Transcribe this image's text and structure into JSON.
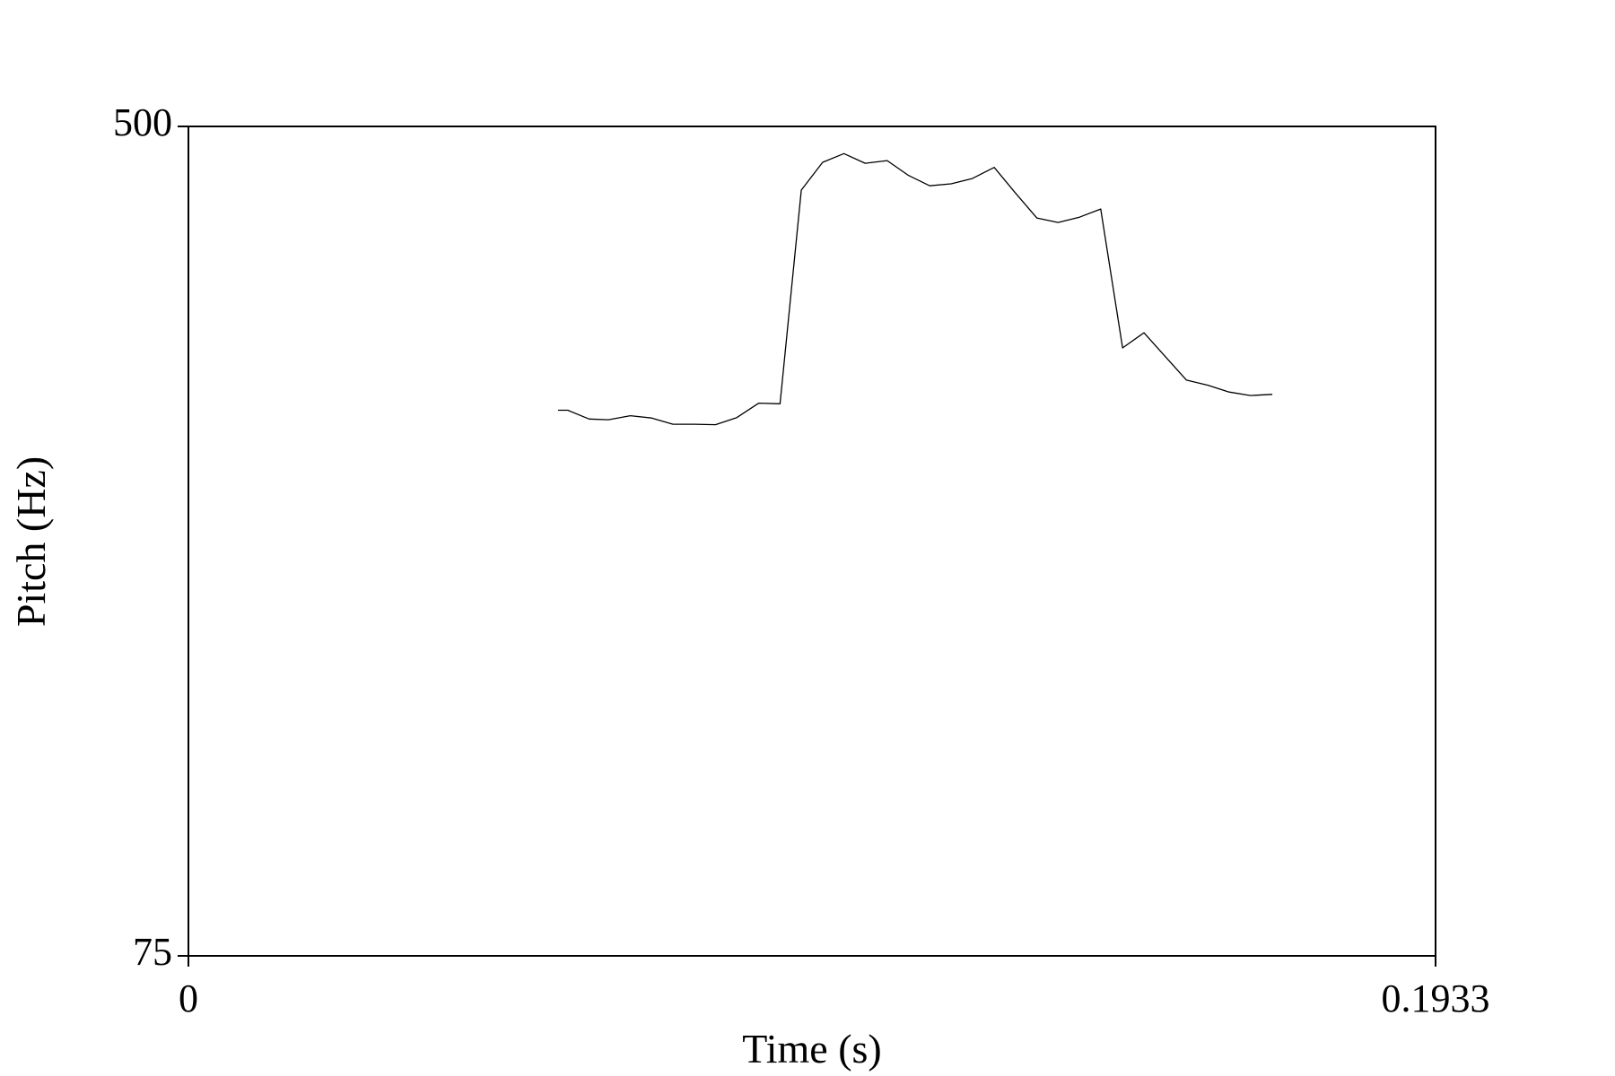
{
  "chart_data": {
    "type": "line",
    "xlabel": "Time (s)",
    "ylabel": "Pitch (Hz)",
    "xlim": [
      0,
      0.1933
    ],
    "ylim": [
      75,
      500
    ],
    "x_tick_labels": [
      "0",
      "0.1933"
    ],
    "y_tick_labels": [
      "75",
      "500"
    ],
    "grid": false,
    "series": [
      {
        "x": [
          0.0573,
          0.0588,
          0.0621,
          0.0651,
          0.0685,
          0.0718,
          0.0751,
          0.0784,
          0.0817,
          0.085,
          0.0884,
          0.0917,
          0.095,
          0.0983,
          0.1016,
          0.1049,
          0.1083,
          0.1116,
          0.1149,
          0.1182,
          0.1215,
          0.1249,
          0.1282,
          0.1315,
          0.1348,
          0.1381,
          0.1414,
          0.1448,
          0.1481,
          0.1514,
          0.1547,
          0.158,
          0.1613,
          0.1646,
          0.168
        ],
        "y": [
          354.6,
          354.6,
          350.1,
          349.7,
          351.8,
          350.6,
          347.4,
          347.4,
          347.2,
          350.8,
          358.2,
          357.9,
          467.4,
          481.6,
          486.1,
          481.1,
          482.5,
          474.9,
          469.6,
          470.6,
          473.3,
          479.0,
          465.8,
          453.1,
          450.8,
          453.5,
          457.7,
          386.5,
          394.3,
          382.1,
          370.0,
          367.4,
          363.9,
          362.1,
          362.7
        ]
      }
    ]
  }
}
